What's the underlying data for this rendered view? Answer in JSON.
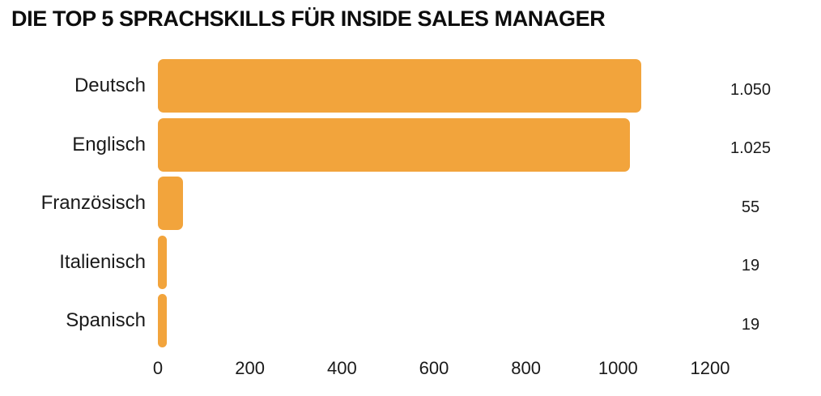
{
  "title": "DIE TOP 5 SPRACHSKILLS FÜR INSIDE SALES MANAGER",
  "chart_data": {
    "type": "bar",
    "orientation": "horizontal",
    "title": "DIE TOP 5 SPRACHSKILLS FÜR INSIDE SALES MANAGER",
    "categories": [
      "Deutsch",
      "Englisch",
      "Französisch",
      "Italienisch",
      "Spanisch"
    ],
    "values": [
      1050,
      1025,
      55,
      19,
      19
    ],
    "value_labels": [
      "1.050",
      "1.025",
      "55",
      "19",
      "19"
    ],
    "xlabel": "",
    "ylabel": "",
    "xlim": [
      0,
      1200
    ],
    "xticks": [
      0,
      200,
      400,
      600,
      800,
      1000,
      1200
    ],
    "xtick_labels": [
      "0",
      "200",
      "400",
      "600",
      "800",
      "1000",
      "1200"
    ],
    "grid": false,
    "legend": false,
    "bar_color": "#F2A43C",
    "text_color": "#1A1A1A",
    "background_color": "#FFFFFF"
  }
}
